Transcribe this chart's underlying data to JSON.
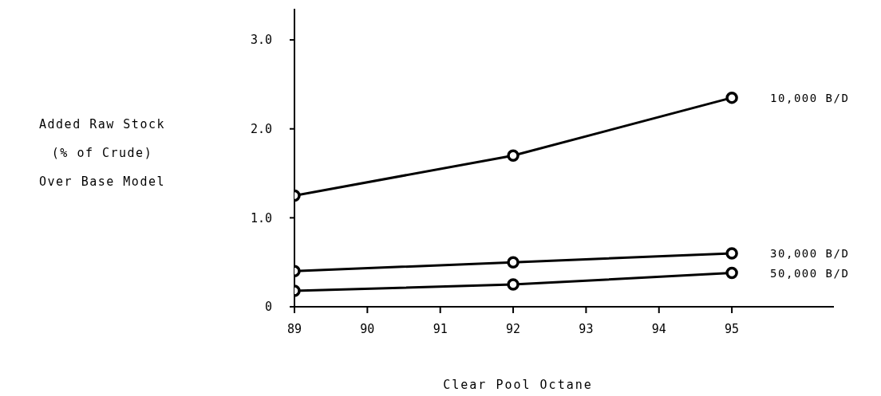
{
  "chart_data": {
    "type": "line",
    "xlabel": "Clear Pool Octane",
    "ylabel": "Added Raw Stock\n(% of Crude)\nOver Base Model",
    "x": [
      89,
      92,
      95
    ],
    "series": [
      {
        "name": "10,000 B/D",
        "color": "#000000",
        "values": [
          1.25,
          1.7,
          2.35
        ]
      },
      {
        "name": "30,000 B/D",
        "color": "#000000",
        "values": [
          0.4,
          0.5,
          0.6
        ]
      },
      {
        "name": "50,000 B/D",
        "color": "#000000",
        "values": [
          0.18,
          0.25,
          0.38
        ]
      }
    ],
    "xlim": [
      89,
      96.4
    ],
    "xticks": [
      89,
      90,
      91,
      92,
      93,
      94,
      95
    ],
    "ylim": [
      0,
      3.35
    ],
    "yticks": [
      0,
      {
        "value": 1,
        "label": "1.0"
      },
      {
        "value": 2,
        "label": "2.0"
      },
      {
        "value": 3,
        "label": "3.0"
      }
    ],
    "grid": false,
    "legend": false,
    "marker": "circle",
    "line_style": "solid"
  }
}
